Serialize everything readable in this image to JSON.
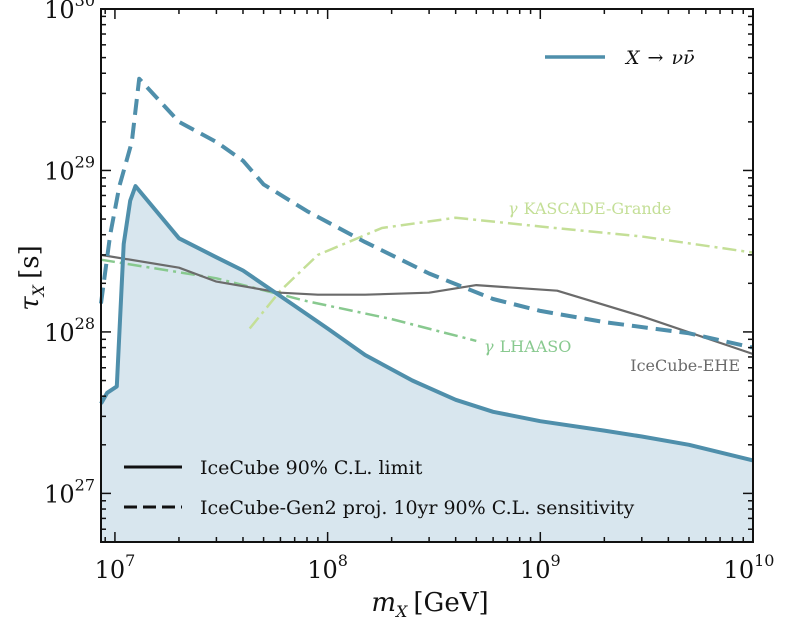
{
  "chart_data": {
    "type": "line",
    "xlabel_main": "m",
    "xlabel_sub": "X",
    "xlabel_unit": "[GeV]",
    "ylabel_main": "τ",
    "ylabel_sub": "X",
    "ylabel_unit": "[s]",
    "x_scale": "log",
    "y_scale": "log",
    "xlim": [
      8600000.0,
      10000000000.0
    ],
    "ylim": [
      5e+26,
      1e+30
    ],
    "grid": false,
    "x_ticks": [
      {
        "value": 10000000.0,
        "base": "10",
        "exp": "7"
      },
      {
        "value": 100000000.0,
        "base": "10",
        "exp": "8"
      },
      {
        "value": 1000000000.0,
        "base": "10",
        "exp": "9"
      },
      {
        "value": 10000000000.0,
        "base": "10",
        "exp": "10"
      }
    ],
    "y_ticks": [
      {
        "value": 1e+27,
        "base": "10",
        "exp": "27"
      },
      {
        "value": 1e+28,
        "base": "10",
        "exp": "28"
      },
      {
        "value": 1e+29,
        "base": "10",
        "exp": "29"
      },
      {
        "value": 1e+30,
        "base": "10",
        "exp": "30"
      }
    ],
    "legend_channel": {
      "placement": "top-right",
      "label_prefix": "X",
      "label_arrow": "→",
      "label_suffix": "νν̄",
      "color": "#4f8fab"
    },
    "legend_styles": {
      "placement": "bottom-left",
      "entries": [
        {
          "label": "IceCube 90% C.L. limit",
          "style": "solid"
        },
        {
          "label": "IceCube-Gen2 proj. 10yr 90% C.L. sensitivity",
          "style": "dashed"
        }
      ]
    },
    "series": [
      {
        "id": "icecube-limit",
        "style": "solid",
        "color": "#4f8fab",
        "fill": "#d8e6ee",
        "points": [
          [
            8600000.0,
            3.6e+27
          ],
          [
            9200000.0,
            4.2e+27
          ],
          [
            10200000.0,
            4.6e+27
          ],
          [
            11000000.0,
            3.5e+28
          ],
          [
            11800000.0,
            6.5e+28
          ],
          [
            12500000.0,
            8e+28
          ],
          [
            20000000.0,
            3.8e+28
          ],
          [
            30000000.0,
            2.9e+28
          ],
          [
            40000000.0,
            2.4e+28
          ],
          [
            70000000.0,
            1.45e+28
          ],
          [
            100000000.0,
            1.05e+28
          ],
          [
            150000000.0,
            7.2e+27
          ],
          [
            250000000.0,
            5e+27
          ],
          [
            400000000.0,
            3.8e+27
          ],
          [
            600000000.0,
            3.2e+27
          ],
          [
            1000000000.0,
            2.8e+27
          ],
          [
            2000000000.0,
            2.45e+27
          ],
          [
            3000000000.0,
            2.25e+27
          ],
          [
            5000000000.0,
            2e+27
          ],
          [
            10000000000.0,
            1.6e+27
          ]
        ]
      },
      {
        "id": "gen2-sensitivity",
        "style": "dashed",
        "color": "#4f8fab",
        "points": [
          [
            8600000.0,
            1.5e+28
          ],
          [
            9500000.0,
            4e+28
          ],
          [
            10500000.0,
            8e+28
          ],
          [
            12000000.0,
            1.5e+29
          ],
          [
            13000000.0,
            3.7e+29
          ],
          [
            20000000.0,
            2e+29
          ],
          [
            30000000.0,
            1.5e+29
          ],
          [
            40000000.0,
            1.15e+29
          ],
          [
            50000000.0,
            8.2e+28
          ],
          [
            80000000.0,
            5.6e+28
          ],
          [
            150000000.0,
            3.6e+28
          ],
          [
            300000000.0,
            2.3e+28
          ],
          [
            600000000.0,
            1.6e+28
          ],
          [
            1000000000.0,
            1.35e+28
          ],
          [
            2000000000.0,
            1.15e+28
          ],
          [
            5000000000.0,
            9.8e+27
          ],
          [
            10000000000.0,
            8e+27
          ]
        ]
      },
      {
        "id": "icecube-ehe",
        "style": "solid-thin",
        "color": "#6b6b6b",
        "label": "IceCube-EHE",
        "points": [
          [
            8600000.0,
            3e+28
          ],
          [
            20000000.0,
            2.5e+28
          ],
          [
            30000000.0,
            2.05e+28
          ],
          [
            60000000.0,
            1.75e+28
          ],
          [
            90000000.0,
            1.7e+28
          ],
          [
            150000000.0,
            1.7e+28
          ],
          [
            300000000.0,
            1.75e+28
          ],
          [
            500000000.0,
            1.95e+28
          ],
          [
            1200000000.0,
            1.8e+28
          ],
          [
            3000000000.0,
            1.25e+28
          ],
          [
            10000000000.0,
            7.3e+27
          ]
        ]
      },
      {
        "id": "lhaaso",
        "style": "dashdot",
        "color": "#88c98f",
        "label_prefix": "γ",
        "label_name": "LHAASO",
        "points": [
          [
            8600000.0,
            2.8e+28
          ],
          [
            30000000.0,
            2.15e+28
          ],
          [
            80000000.0,
            1.55e+28
          ],
          [
            200000000.0,
            1.2e+28
          ],
          [
            500000000.0,
            8.8e+27
          ]
        ]
      },
      {
        "id": "kascade-grande",
        "style": "dashdot",
        "color": "#c4df97",
        "label_prefix": "γ",
        "label_name": "KASCADE-Grande",
        "points": [
          [
            43000000.0,
            1.05e+28
          ],
          [
            60000000.0,
            1.8e+28
          ],
          [
            90000000.0,
            3e+28
          ],
          [
            180000000.0,
            4.4e+28
          ],
          [
            400000000.0,
            5.1e+28
          ],
          [
            1000000000.0,
            4.5e+28
          ],
          [
            3000000000.0,
            3.9e+28
          ],
          [
            10000000000.0,
            3.1e+28
          ]
        ]
      }
    ]
  }
}
